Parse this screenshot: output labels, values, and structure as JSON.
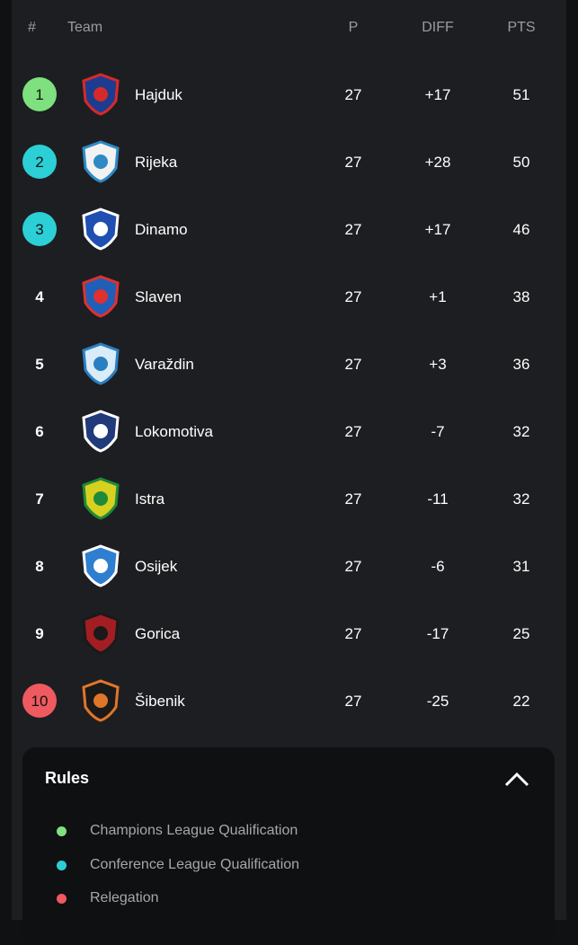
{
  "table": {
    "header": [
      "#",
      "Team",
      "P",
      "DIFF",
      "PTS"
    ],
    "rows": [
      [
        "1",
        "Hajduk",
        "27",
        "+17",
        "51"
      ],
      [
        "2",
        "Rijeka",
        "27",
        "+28",
        "50"
      ],
      [
        "3",
        "Dinamo",
        "27",
        "+17",
        "46"
      ],
      [
        "4",
        "Slaven",
        "27",
        "+1",
        "38"
      ],
      [
        "5",
        "Varaždin",
        "27",
        "+3",
        "36"
      ],
      [
        "6",
        "Lokomotiva",
        "27",
        "-7",
        "32"
      ],
      [
        "7",
        "Istra",
        "27",
        "-11",
        "32"
      ],
      [
        "8",
        "Osijek",
        "27",
        "-6",
        "31"
      ],
      [
        "9",
        "Gorica",
        "27",
        "-17",
        "25"
      ],
      [
        "10",
        "Šibenik",
        "27",
        "-25",
        "22"
      ]
    ]
  },
  "rules": {
    "title": "Rules",
    "items": [
      {
        "label": "Champions League Qualification",
        "color": "#7ee07e"
      },
      {
        "label": "Conference League Qualification",
        "color": "#2ccfd6"
      },
      {
        "label": "Relegation",
        "color": "#ee5a5f"
      }
    ]
  }
}
